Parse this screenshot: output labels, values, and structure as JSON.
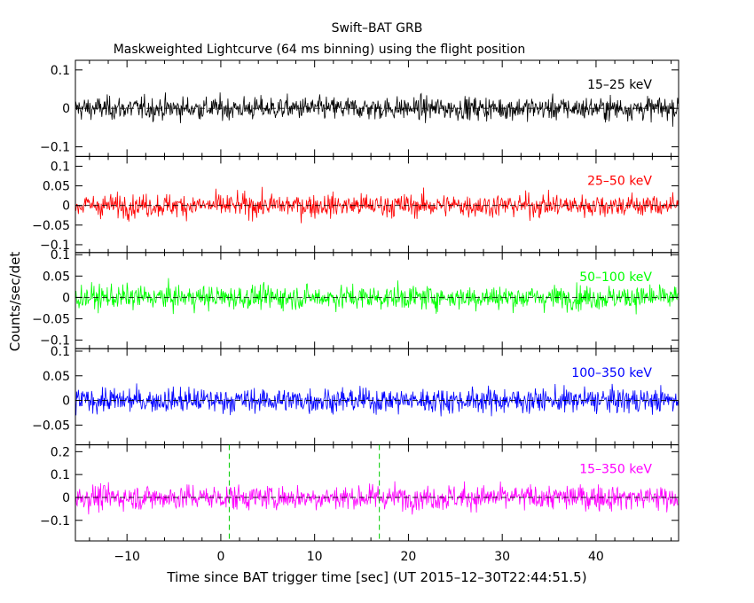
{
  "chart_data": {
    "type": "line",
    "title": "Swift–BAT GRB",
    "subtitle": "Maskweighted Lightcurve (64 ms binning) using the flight position",
    "xlabel": "Time since BAT trigger time [sec] (UT 2015–12–30T22:44:51.5)",
    "ylabel": "Counts/sec/det",
    "xlim": [
      -15.5,
      48.8
    ],
    "x_ticks": [
      -10,
      0,
      10,
      20,
      30,
      40
    ],
    "x_tick_labels": [
      "−10",
      "0",
      "10",
      "20",
      "30",
      "40"
    ],
    "binning_sec": 0.064,
    "vertical_markers": [
      {
        "x": 0.9,
        "style": "dashed",
        "color": "#00cc00"
      },
      {
        "x": 16.9,
        "style": "dashed",
        "color": "#00cc00"
      }
    ],
    "panels": [
      {
        "name": "15–25 keV",
        "color": "#000000",
        "ylim": [
          -0.125,
          0.125
        ],
        "y_ticks": [
          -0.1,
          0,
          0.1
        ],
        "y_tick_labels": [
          "−0.1",
          "0",
          "0.1"
        ],
        "noise_amplitude": 0.03
      },
      {
        "name": "25–50 keV",
        "color": "#ff0000",
        "ylim": [
          -0.12,
          0.125
        ],
        "y_ticks": [
          -0.1,
          -0.05,
          0,
          0.05,
          0.1
        ],
        "y_tick_labels": [
          "−0.1",
          "−0.05",
          "0",
          "0.05",
          "0.1"
        ],
        "noise_amplitude": 0.03
      },
      {
        "name": "50–100 keV",
        "color": "#00ff00",
        "ylim": [
          -0.12,
          0.105
        ],
        "y_ticks": [
          -0.1,
          -0.05,
          0,
          0.05,
          0.1
        ],
        "y_tick_labels": [
          "−0.1",
          "−0.05",
          "0",
          "0.05",
          "0.1"
        ],
        "noise_amplitude": 0.028
      },
      {
        "name": "100–350 keV",
        "color": "#0000ff",
        "ylim": [
          -0.09,
          0.105
        ],
        "y_ticks": [
          -0.05,
          0,
          0.05,
          0.1
        ],
        "y_tick_labels": [
          "−0.05",
          "0",
          "0.05",
          "0.1"
        ],
        "noise_amplitude": 0.025
      },
      {
        "name": "15–350 keV",
        "color": "#ff00ff",
        "ylim": [
          -0.19,
          0.23
        ],
        "y_ticks": [
          -0.1,
          0,
          0.1,
          0.2
        ],
        "y_tick_labels": [
          "−0.1",
          "0",
          "0.1",
          "0.2"
        ],
        "noise_amplitude": 0.055
      }
    ]
  }
}
